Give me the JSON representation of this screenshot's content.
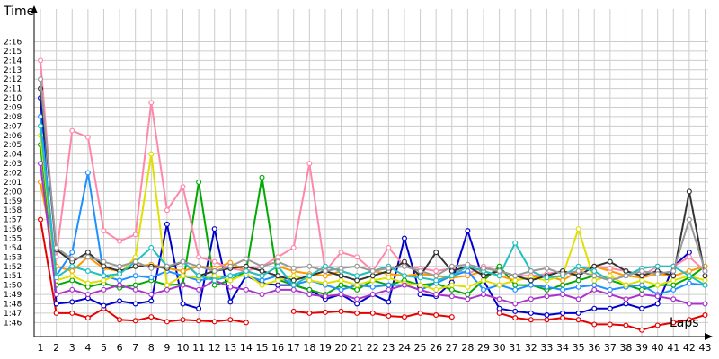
{
  "chart_data": {
    "type": "line",
    "xlabel": "Laps",
    "ylabel": "Time",
    "x_ticks": [
      "1",
      "2",
      "3",
      "4",
      "5",
      "6",
      "7",
      "8",
      "9",
      "10",
      "11",
      "12",
      "13",
      "14",
      "15",
      "16",
      "17",
      "18",
      "19",
      "20",
      "21",
      "22",
      "23",
      "24",
      "25",
      "26",
      "27",
      "28",
      "29",
      "30",
      "31",
      "32",
      "33",
      "34",
      "35",
      "36",
      "37",
      "38",
      "39",
      "40",
      "41",
      "42",
      "43"
    ],
    "y_ticks": [
      "1:46",
      "1:47",
      "1:48",
      "1:49",
      "1:50",
      "1:51",
      "1:52",
      "1:53",
      "1:54",
      "1:55",
      "1:56",
      "1:57",
      "1:58",
      "1:59",
      "2:00",
      "2:01",
      "2:02",
      "2:03",
      "2:04",
      "2:05",
      "2:06",
      "2:07",
      "2:08",
      "2:09",
      "2:10",
      "2:11",
      "2:12",
      "2:13",
      "2:14",
      "2:15",
      "2:16"
    ],
    "ylim_seconds": [
      104.5,
      139.5
    ],
    "xlim": [
      0.6,
      43.2
    ],
    "grid": true,
    "legend": "none",
    "series": [
      {
        "color": "#e60000",
        "values": [
          117,
          107,
          107,
          106.5,
          107.5,
          106.3,
          106.2,
          106.6,
          106.1,
          106.3,
          106.2,
          106.1,
          106.3,
          106.0,
          null,
          null,
          107.2,
          107.0,
          107.1,
          107.2,
          107.0,
          107.0,
          106.7,
          106.6,
          107.0,
          106.8,
          106.6,
          null,
          null,
          107.0,
          106.5,
          106.3,
          106.3,
          106.5,
          106.3,
          105.8,
          105.8,
          105.7,
          105.2,
          105.7,
          106.0,
          106.3,
          106.8
        ]
      },
      {
        "color": "#0000cc",
        "values": [
          130,
          108,
          108.2,
          108.6,
          107.8,
          108.3,
          108.0,
          108.3,
          116.5,
          108.0,
          107.5,
          116.0,
          108.2,
          111.0,
          110.2,
          110.0,
          110.0,
          109.5,
          108.5,
          109.0,
          108.0,
          109.0,
          108.2,
          115.0,
          109.0,
          108.8,
          110.3,
          115.8,
          110.5,
          107.5,
          107.2,
          107.0,
          106.8,
          107.0,
          107.0,
          107.5,
          107.5,
          108.0,
          107.5,
          108.0,
          112.0,
          113.5,
          null
        ]
      },
      {
        "color": "#00aa00",
        "values": [
          125,
          110,
          110.5,
          109.8,
          110.2,
          109.7,
          110.0,
          110.5,
          110.0,
          110.1,
          121.0,
          110.0,
          110.5,
          111.5,
          121.5,
          110.6,
          110.0,
          109.5,
          109.0,
          110.0,
          109.5,
          110.5,
          110.0,
          110.5,
          110.0,
          110.2,
          109.5,
          109.0,
          110.5,
          112.0,
          110.0,
          110.0,
          109.5,
          110.0,
          110.5,
          111.0,
          110.5,
          110.0,
          109.5,
          110.0,
          110.0,
          110.8,
          112.0
        ]
      },
      {
        "color": "#ff9900",
        "values": [
          121,
          112,
          111.5,
          113,
          111.8,
          111.5,
          112.0,
          112.2,
          111.8,
          111.5,
          112.0,
          111.8,
          112.4,
          111.5,
          111.0,
          112.0,
          111.5,
          111.2,
          111.0,
          111.5,
          111.0,
          111.5,
          111.2,
          111.0,
          111.2,
          111.0,
          110.8,
          111.0,
          111.5,
          111.0,
          110.5,
          110.8,
          111.0,
          110.5,
          111.5,
          112.0,
          111.5,
          111.0,
          110.8,
          111.2,
          111.0,
          111.5,
          112.0
        ]
      },
      {
        "color": "#ff88aa",
        "values": [
          134,
          113,
          126.5,
          125.8,
          115.8,
          114.7,
          115.4,
          129.5,
          118.0,
          120.5,
          113.0,
          112.5,
          111.8,
          111.5,
          112.0,
          113.0,
          114.0,
          123.0,
          111.5,
          113.5,
          113.0,
          111.5,
          114.0,
          112.0,
          111.8,
          111.5,
          111.8,
          111.2,
          112.0,
          111.5,
          111.0,
          111.0,
          111.2,
          111.5,
          111.0,
          112.0,
          111.8,
          111.5,
          111.0,
          112.0,
          112.0,
          113.0,
          111.5
        ]
      },
      {
        "color": "#1e90ff",
        "values": [
          128,
          111,
          113.5,
          122.0,
          111.0,
          110.5,
          111.0,
          110.8,
          111.5,
          111.0,
          110.5,
          110.8,
          111.0,
          111.0,
          110.5,
          111.0,
          110.0,
          110.5,
          110.0,
          109.5,
          110.0,
          109.8,
          110.0,
          110.0,
          109.5,
          110.2,
          111.0,
          111.5,
          109.5,
          110.0,
          109.5,
          110.0,
          109.8,
          109.5,
          109.8,
          110.0,
          109.5,
          109.8,
          110.0,
          109.0,
          109.5,
          110.2,
          110.0
        ]
      },
      {
        "color": "#e0e000",
        "values": [
          126,
          110.5,
          111.0,
          110.2,
          110.5,
          111.2,
          113.0,
          124.0,
          110.0,
          111.0,
          110.8,
          111.0,
          110.5,
          111.2,
          110.0,
          110.5,
          111.0,
          110.5,
          110.2,
          110.5,
          110.0,
          110.5,
          110.8,
          110.2,
          110.0,
          109.5,
          110.0,
          109.8,
          110.5,
          110.0,
          110.5,
          110.8,
          110.5,
          111.0,
          116.0,
          110.5,
          111.0,
          110.0,
          110.5,
          110.0,
          110.5,
          111.0,
          110.5
        ]
      },
      {
        "color": "#333333",
        "values": [
          131,
          113.8,
          112.5,
          113.5,
          112.0,
          111.5,
          112.0,
          112.0,
          111.8,
          112.5,
          111.0,
          111.5,
          111.8,
          112.0,
          111.5,
          111.0,
          110.5,
          111.0,
          111.5,
          111.0,
          110.5,
          111.0,
          111.5,
          112.5,
          111.0,
          113.5,
          111.5,
          112.0,
          111.0,
          111.5,
          111.0,
          110.5,
          111.0,
          111.5,
          111.0,
          112.0,
          112.5,
          111.5,
          111.0,
          111.5,
          111.0,
          120.0,
          111.0
        ]
      },
      {
        "color": "#aa33cc",
        "values": [
          123,
          109,
          109.5,
          109.0,
          109.5,
          110.0,
          109.5,
          109.0,
          109.5,
          110.0,
          109.5,
          110.5,
          109.8,
          109.5,
          109.0,
          109.5,
          109.5,
          109.0,
          108.8,
          109.0,
          108.5,
          109.0,
          109.5,
          110.0,
          109.5,
          109.0,
          108.8,
          108.5,
          109.0,
          108.5,
          108.0,
          108.5,
          108.8,
          109.0,
          108.5,
          109.5,
          109.0,
          108.5,
          109.0,
          108.8,
          108.5,
          108.0,
          108.0
        ]
      },
      {
        "color": "#20c0c0",
        "values": [
          127,
          110.8,
          112.0,
          111.5,
          111.0,
          111.2,
          112.5,
          114.0,
          112.0,
          112.5,
          111.0,
          110.5,
          111.0,
          111.5,
          111.0,
          112.0,
          110.0,
          111.0,
          112.0,
          111.5,
          111.0,
          111.5,
          112.0,
          111.0,
          110.8,
          110.5,
          111.0,
          112.0,
          111.5,
          111.0,
          114.5,
          111.5,
          110.8,
          111.0,
          112.0,
          111.5,
          110.5,
          111.0,
          111.8,
          112.0,
          112.0,
          111.0,
          110.0
        ]
      },
      {
        "color": "#999999",
        "values": [
          132,
          114.0,
          112.8,
          113.0,
          112.5,
          112.0,
          112.5,
          111.8,
          112.0,
          112.5,
          112.0,
          111.5,
          112.0,
          112.8,
          112.0,
          112.5,
          111.8,
          112.0,
          111.5,
          111.8,
          112.0,
          111.5,
          111.8,
          112.0,
          111.5,
          111.0,
          112.0,
          112.2,
          111.8,
          111.5,
          111.0,
          111.5,
          111.8,
          111.2,
          111.5,
          111.0,
          110.5,
          111.0,
          111.5,
          111.2,
          111.5,
          117.0,
          111.5
        ]
      }
    ]
  }
}
